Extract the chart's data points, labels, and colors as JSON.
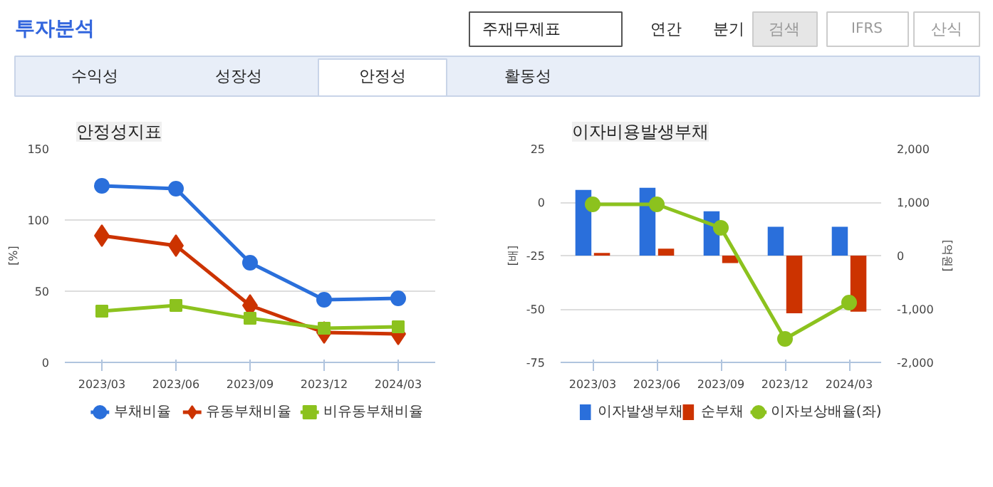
{
  "chart_data": [
    {
      "type": "other",
      "annotations": [
        "투자분석",
        "주재무제표",
        "연간",
        "분기",
        "검색",
        "IFRS",
        "산식",
        "수익성",
        "성장성",
        "안정성",
        "활동성"
      ]
    },
    {
      "type": "line",
      "title": "안정성지표",
      "ylabel": "[%]",
      "categories": [
        "2023/03",
        "2023/06",
        "2023/09",
        "2023/12",
        "2024/03"
      ],
      "ylim": [
        0,
        150
      ],
      "yticks": [
        0,
        50,
        100,
        150
      ],
      "grid": "y",
      "legend": "bottom",
      "series": [
        {
          "name": "부채비율",
          "color": "#2a6fdb",
          "marker": "circle",
          "values": [
            124,
            122,
            70,
            44,
            45
          ]
        },
        {
          "name": "유동부채비율",
          "color": "#cc3300",
          "marker": "diamond",
          "values": [
            89,
            82,
            40,
            21,
            20
          ]
        },
        {
          "name": "비유동부채비율",
          "color": "#8cc21e",
          "marker": "square",
          "values": [
            36,
            40,
            31,
            24,
            25
          ]
        }
      ]
    },
    {
      "type": "bar",
      "title": "이자비용발생부채",
      "ylabel": "[배]",
      "y2label": "[억원]",
      "categories": [
        "2023/03",
        "2023/06",
        "2023/09",
        "2023/12",
        "2024/03"
      ],
      "ylim": [
        -75,
        25
      ],
      "yticks": [
        -75,
        -50,
        -25,
        0,
        25
      ],
      "y2lim": [
        -2000,
        2000
      ],
      "y2ticks": [
        {
          "value": -2000,
          "label": "-2,000"
        },
        {
          "value": -1000,
          "label": "-1,000"
        },
        0,
        {
          "value": 1000,
          "label": "1,000"
        },
        {
          "value": 2000,
          "label": "2,000"
        }
      ],
      "grid": "y",
      "legend": "bottom",
      "series": [
        {
          "name": "이자발생부채",
          "type": "bar",
          "axis": "y2",
          "color": "#2a6fdb",
          "values": [
            1230,
            1270,
            830,
            540,
            540
          ]
        },
        {
          "name": "순부채",
          "type": "bar",
          "axis": "y2",
          "color": "#cc3300",
          "values": [
            50,
            130,
            -140,
            -1080,
            -1050
          ]
        },
        {
          "name": "이자보상배율(좌)",
          "type": "line",
          "axis": "y",
          "color": "#8cc21e",
          "marker": "circle",
          "values": [
            -1,
            -1,
            -12,
            -64,
            -47
          ]
        }
      ]
    }
  ]
}
